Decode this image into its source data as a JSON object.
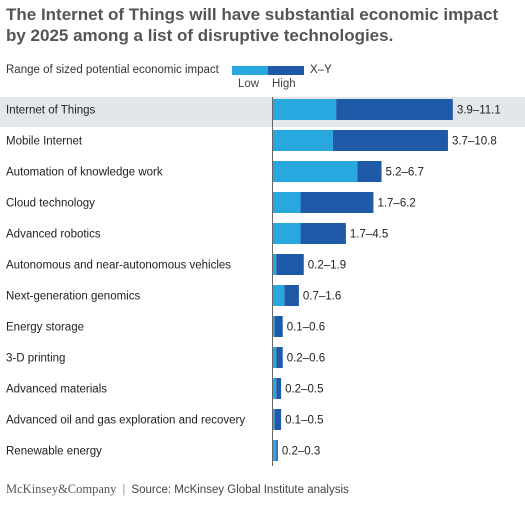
{
  "title": "The Internet of Things will have substantial economic impact by 2025 among a list of disruptive technologies.",
  "legend": {
    "range_caption": "Range of sized potential economic impact",
    "low_label": "Low",
    "high_label": "High",
    "range_format": "X–Y"
  },
  "colors": {
    "low": "#29a8e0",
    "high": "#1f5aa8",
    "highlight_row": "#e4e7ea",
    "axis": "#666666"
  },
  "chart_data": {
    "type": "bar",
    "title": "The Internet of Things will have substantial economic impact by 2025 among a list of disruptive technologies.",
    "xlabel": "",
    "ylabel": "",
    "series": [
      {
        "name": "Low",
        "values": [
          3.9,
          3.7,
          5.2,
          1.7,
          1.7,
          0.2,
          0.7,
          0.1,
          0.2,
          0.2,
          0.1,
          0.2
        ]
      },
      {
        "name": "High",
        "values": [
          11.1,
          10.8,
          6.7,
          6.2,
          4.5,
          1.9,
          1.6,
          0.6,
          0.6,
          0.5,
          0.5,
          0.3
        ]
      }
    ],
    "categories": [
      "Internet of Things",
      "Mobile Internet",
      "Automation of knowledge work",
      "Cloud technology",
      "Advanced robotics",
      "Autonomous and near-autonomous vehicles",
      "Next-generation genomics",
      "Energy storage",
      "3-D printing",
      "Advanced materials",
      "Advanced oil and gas exploration and recovery",
      "Renewable energy"
    ],
    "range_labels": [
      "3.9–11.1",
      "3.7–10.8",
      "5.2–6.7",
      "1.7–6.2",
      "1.7–4.5",
      "0.2–1.9",
      "0.7–1.6",
      "0.1–0.6",
      "0.2–0.6",
      "0.2–0.5",
      "0.1–0.5",
      "0.2–0.3"
    ],
    "highlighted_category": "Internet of Things",
    "xlim": [
      0,
      11.1
    ],
    "grid": false,
    "legend_position": "top-left"
  },
  "footer": {
    "brand": "McKinsey&Company",
    "separator": "|",
    "source": "Source: McKinsey Global Institute analysis"
  }
}
